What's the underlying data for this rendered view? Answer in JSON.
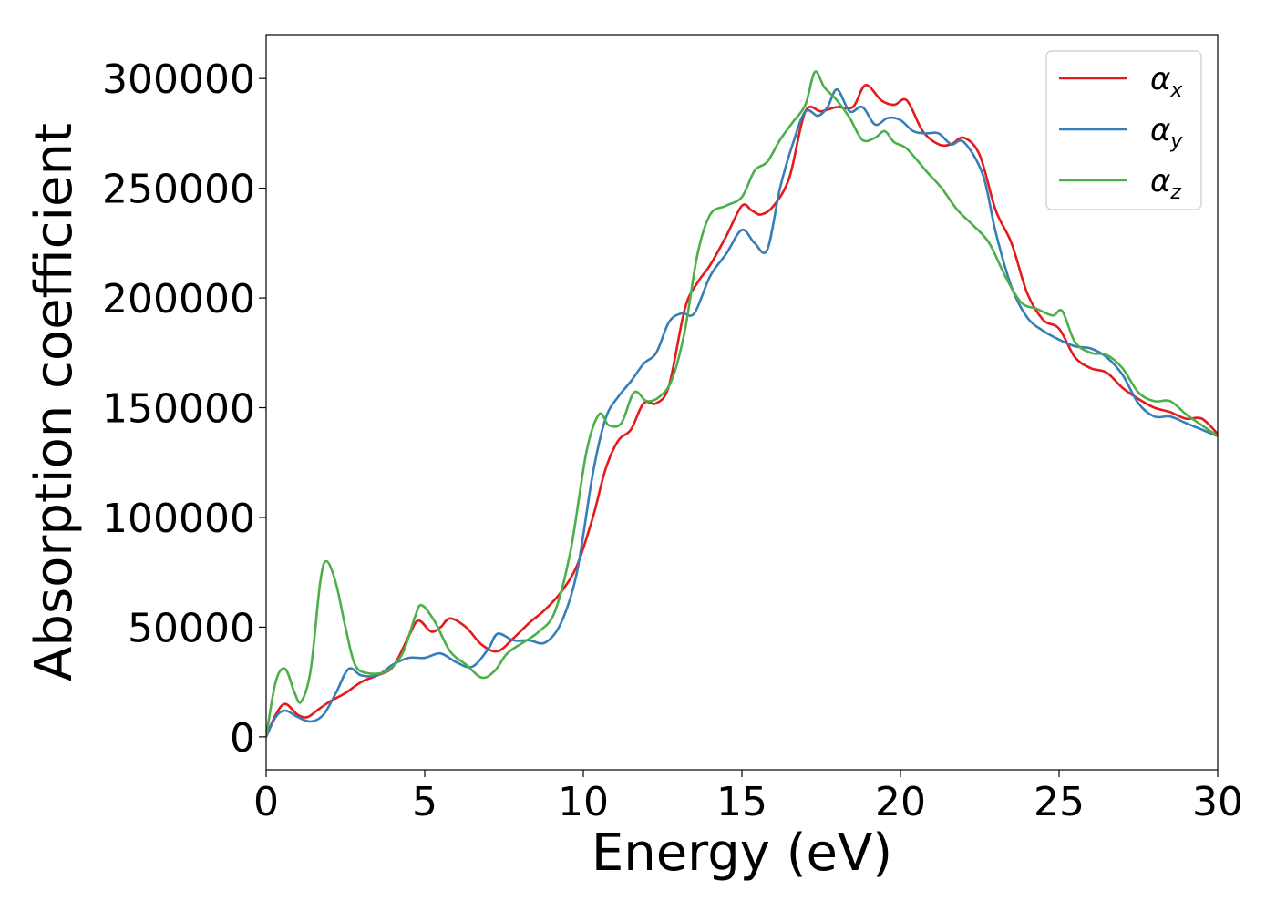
{
  "chart_data": {
    "type": "line",
    "title": "",
    "xlabel": "Energy (eV)",
    "ylabel": "Absorption coefficient",
    "xlim": [
      0,
      30
    ],
    "ylim": [
      -15000,
      320000
    ],
    "xticks": [
      0,
      5,
      10,
      15,
      20,
      25,
      30
    ],
    "yticks": [
      0,
      50000,
      100000,
      150000,
      200000,
      250000,
      300000
    ],
    "xtick_labels": [
      "0",
      "5",
      "10",
      "15",
      "20",
      "25",
      "30"
    ],
    "ytick_labels": [
      "0",
      "50000",
      "100000",
      "150000",
      "200000",
      "250000",
      "300000"
    ],
    "grid": false,
    "legend_position": "top-right",
    "series": [
      {
        "name": "α",
        "subscript": "x",
        "color": "#e41a1c",
        "points": [
          [
            0,
            0
          ],
          [
            0.3,
            10000
          ],
          [
            0.6,
            15000
          ],
          [
            1,
            10000
          ],
          [
            1.3,
            9000
          ],
          [
            1.6,
            12000
          ],
          [
            2,
            16000
          ],
          [
            2.5,
            20000
          ],
          [
            3,
            25000
          ],
          [
            3.5,
            28000
          ],
          [
            4,
            32000
          ],
          [
            4.5,
            46000
          ],
          [
            4.8,
            53000
          ],
          [
            5.2,
            48000
          ],
          [
            5.5,
            50000
          ],
          [
            5.8,
            54000
          ],
          [
            6.3,
            50000
          ],
          [
            6.8,
            42000
          ],
          [
            7.3,
            39000
          ],
          [
            7.8,
            45000
          ],
          [
            8.3,
            52000
          ],
          [
            8.8,
            58000
          ],
          [
            9.3,
            66000
          ],
          [
            9.8,
            78000
          ],
          [
            10.3,
            100000
          ],
          [
            10.7,
            122000
          ],
          [
            11.1,
            135000
          ],
          [
            11.5,
            140000
          ],
          [
            11.9,
            152000
          ],
          [
            12.3,
            152000
          ],
          [
            12.7,
            160000
          ],
          [
            13.2,
            195000
          ],
          [
            13.6,
            207000
          ],
          [
            14,
            215000
          ],
          [
            14.5,
            228000
          ],
          [
            15,
            242000
          ],
          [
            15.3,
            240000
          ],
          [
            15.6,
            238000
          ],
          [
            16,
            242000
          ],
          [
            16.5,
            255000
          ],
          [
            17,
            285000
          ],
          [
            17.5,
            285000
          ],
          [
            18,
            287000
          ],
          [
            18.5,
            287000
          ],
          [
            18.9,
            297000
          ],
          [
            19.4,
            290000
          ],
          [
            19.8,
            288000
          ],
          [
            20.2,
            290000
          ],
          [
            20.7,
            276000
          ],
          [
            21.2,
            270000
          ],
          [
            21.6,
            270000
          ],
          [
            22,
            273000
          ],
          [
            22.5,
            265000
          ],
          [
            23,
            240000
          ],
          [
            23.5,
            225000
          ],
          [
            24,
            202000
          ],
          [
            24.5,
            190000
          ],
          [
            25,
            186000
          ],
          [
            25.5,
            173000
          ],
          [
            26,
            168000
          ],
          [
            26.5,
            166000
          ],
          [
            27,
            159000
          ],
          [
            27.5,
            154000
          ],
          [
            28,
            150000
          ],
          [
            28.5,
            148000
          ],
          [
            29,
            145000
          ],
          [
            29.5,
            145000
          ],
          [
            30,
            138000
          ]
        ]
      },
      {
        "name": "α",
        "subscript": "y",
        "color": "#377eb8",
        "points": [
          [
            0,
            0
          ],
          [
            0.3,
            9000
          ],
          [
            0.6,
            12000
          ],
          [
            1,
            9000
          ],
          [
            1.4,
            7000
          ],
          [
            1.8,
            10000
          ],
          [
            2.2,
            20000
          ],
          [
            2.6,
            31000
          ],
          [
            3,
            28000
          ],
          [
            3.5,
            28000
          ],
          [
            4,
            33000
          ],
          [
            4.5,
            36000
          ],
          [
            5,
            36000
          ],
          [
            5.5,
            38000
          ],
          [
            6,
            34000
          ],
          [
            6.5,
            32000
          ],
          [
            7,
            40000
          ],
          [
            7.3,
            47000
          ],
          [
            7.8,
            44000
          ],
          [
            8.3,
            44000
          ],
          [
            8.8,
            43000
          ],
          [
            9.3,
            52000
          ],
          [
            9.8,
            75000
          ],
          [
            10.3,
            120000
          ],
          [
            10.7,
            145000
          ],
          [
            11.1,
            155000
          ],
          [
            11.5,
            162000
          ],
          [
            11.9,
            170000
          ],
          [
            12.3,
            175000
          ],
          [
            12.7,
            189000
          ],
          [
            13.1,
            193000
          ],
          [
            13.5,
            193000
          ],
          [
            14,
            210000
          ],
          [
            14.5,
            220000
          ],
          [
            15,
            231000
          ],
          [
            15.4,
            225000
          ],
          [
            15.8,
            222000
          ],
          [
            16.2,
            250000
          ],
          [
            16.6,
            270000
          ],
          [
            17,
            285000
          ],
          [
            17.4,
            283000
          ],
          [
            17.7,
            287000
          ],
          [
            18,
            295000
          ],
          [
            18.4,
            285000
          ],
          [
            18.8,
            287000
          ],
          [
            19.2,
            279000
          ],
          [
            19.6,
            282000
          ],
          [
            20,
            281000
          ],
          [
            20.4,
            276000
          ],
          [
            20.8,
            275000
          ],
          [
            21.2,
            275000
          ],
          [
            21.6,
            270000
          ],
          [
            22,
            271000
          ],
          [
            22.6,
            256000
          ],
          [
            23,
            230000
          ],
          [
            23.5,
            205000
          ],
          [
            24,
            191000
          ],
          [
            24.5,
            185000
          ],
          [
            25,
            181000
          ],
          [
            25.5,
            178000
          ],
          [
            26,
            177000
          ],
          [
            26.5,
            173000
          ],
          [
            27,
            165000
          ],
          [
            27.5,
            152000
          ],
          [
            28,
            146000
          ],
          [
            28.5,
            146000
          ],
          [
            29,
            143000
          ],
          [
            29.5,
            140000
          ],
          [
            30,
            137000
          ]
        ]
      },
      {
        "name": "α",
        "subscript": "z",
        "color": "#4daf4a",
        "points": [
          [
            0,
            0
          ],
          [
            0.3,
            25000
          ],
          [
            0.6,
            31000
          ],
          [
            0.9,
            20000
          ],
          [
            1.1,
            16000
          ],
          [
            1.4,
            30000
          ],
          [
            1.7,
            70000
          ],
          [
            1.9,
            80000
          ],
          [
            2.2,
            70000
          ],
          [
            2.5,
            50000
          ],
          [
            2.8,
            33000
          ],
          [
            3.2,
            29000
          ],
          [
            3.8,
            30000
          ],
          [
            4.3,
            38000
          ],
          [
            4.7,
            55000
          ],
          [
            4.9,
            60000
          ],
          [
            5.3,
            53000
          ],
          [
            5.8,
            39000
          ],
          [
            6.3,
            33000
          ],
          [
            6.8,
            27000
          ],
          [
            7.2,
            30000
          ],
          [
            7.6,
            38000
          ],
          [
            8.1,
            43000
          ],
          [
            8.6,
            48000
          ],
          [
            9.1,
            57000
          ],
          [
            9.6,
            85000
          ],
          [
            10.1,
            130000
          ],
          [
            10.5,
            147000
          ],
          [
            10.8,
            142000
          ],
          [
            11.2,
            143000
          ],
          [
            11.6,
            157000
          ],
          [
            12,
            153000
          ],
          [
            12.4,
            155000
          ],
          [
            12.8,
            163000
          ],
          [
            13.2,
            185000
          ],
          [
            13.6,
            220000
          ],
          [
            14,
            238000
          ],
          [
            14.5,
            242000
          ],
          [
            15,
            246000
          ],
          [
            15.4,
            258000
          ],
          [
            15.8,
            262000
          ],
          [
            16.2,
            272000
          ],
          [
            16.6,
            280000
          ],
          [
            17,
            288000
          ],
          [
            17.3,
            303000
          ],
          [
            17.6,
            296000
          ],
          [
            18,
            290000
          ],
          [
            18.4,
            282000
          ],
          [
            18.8,
            272000
          ],
          [
            19.2,
            273000
          ],
          [
            19.5,
            276000
          ],
          [
            19.8,
            271000
          ],
          [
            20.2,
            268000
          ],
          [
            20.8,
            258000
          ],
          [
            21.3,
            250000
          ],
          [
            21.8,
            240000
          ],
          [
            22.3,
            233000
          ],
          [
            22.8,
            225000
          ],
          [
            23.3,
            210000
          ],
          [
            23.8,
            198000
          ],
          [
            24.3,
            195000
          ],
          [
            24.8,
            192000
          ],
          [
            25.1,
            194000
          ],
          [
            25.5,
            180000
          ],
          [
            26,
            175000
          ],
          [
            26.5,
            174000
          ],
          [
            27,
            168000
          ],
          [
            27.5,
            157000
          ],
          [
            28,
            153000
          ],
          [
            28.5,
            153000
          ],
          [
            29,
            147000
          ],
          [
            29.5,
            142000
          ],
          [
            30,
            137000
          ]
        ]
      }
    ]
  }
}
